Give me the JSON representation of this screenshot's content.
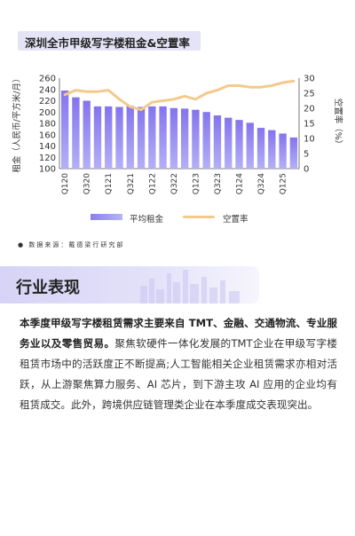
{
  "title": "深圳全市甲级写字楼租金&空置率",
  "chart_data": {
    "type": "bar+line",
    "categories": [
      "Q120",
      "Q220",
      "Q320",
      "Q420",
      "Q121",
      "Q221",
      "Q321",
      "Q421",
      "Q122",
      "Q222",
      "Q322",
      "Q422",
      "Q123",
      "Q223",
      "Q323",
      "Q423",
      "Q124",
      "Q224",
      "Q324",
      "Q424",
      "Q125",
      "Q225"
    ],
    "x_tick_labels": [
      "Q120",
      "Q320",
      "Q121",
      "Q321",
      "Q122",
      "Q322",
      "Q123",
      "Q323",
      "Q124",
      "Q324",
      "Q125"
    ],
    "series": [
      {
        "name": "平均租金",
        "type": "bar",
        "axis": "left",
        "color": "#8b7ef0",
        "values": [
          238,
          226,
          220,
          210,
          210,
          209,
          211,
          209,
          210,
          210,
          207,
          206,
          204,
          200,
          194,
          190,
          186,
          181,
          172,
          168,
          162,
          155
        ]
      },
      {
        "name": "空置率",
        "type": "line",
        "axis": "right",
        "color": "#f5c98c",
        "values": [
          24.5,
          26,
          25.5,
          25.5,
          26,
          23,
          20.5,
          19.5,
          22,
          22.5,
          23,
          24,
          23,
          25,
          26,
          27.5,
          27.5,
          27,
          27,
          27.5,
          28.5,
          29
        ]
      }
    ],
    "ylabel_left": "租金（人民币/平方米/月）",
    "ylabel_right": "空置率（%）",
    "ylim_left": [
      100,
      260
    ],
    "yticks_left": [
      100,
      120,
      140,
      160,
      180,
      200,
      220,
      240,
      260
    ],
    "ylim_right": [
      0,
      30
    ],
    "yticks_right": [
      0,
      5,
      10,
      15,
      20,
      25,
      30
    ],
    "grid": false,
    "legend_position": "bottom"
  },
  "legend": {
    "bar_label": "平均租金",
    "line_label": "空置率"
  },
  "source": "数据来源：戴德梁行研究部",
  "section_title": "行业表现",
  "paragraph": {
    "bold": "本季度甲级写字楼租赁需求主要来自 TMT、金融、交通物流、专业服务业以及零售贸易。",
    "rest": "聚焦软硬件一体化发展的TMT企业在甲级写字楼租赁市场中的活跃度正不断提高;人工智能相关企业租赁需求亦相对活跃，从上游聚焦算力服务、AI 芯片，到下游主攻 AI 应用的企业均有租赁成交。此外，跨境供应链管理类企业在本季度成交表现突出。"
  },
  "colors": {
    "accent": "#8b7ef0",
    "line": "#f5c98c",
    "title_bg": "#e5e4f7",
    "banner_bg": "#d6d3f6"
  }
}
